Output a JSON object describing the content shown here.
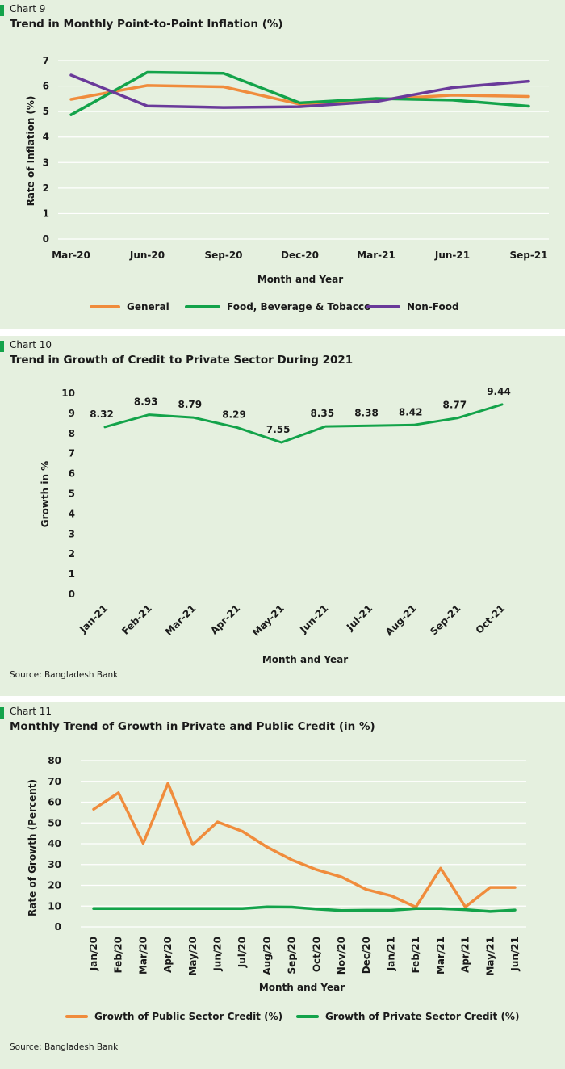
{
  "chart_data": [
    {
      "type": "line",
      "label": "Chart 9",
      "title": "Trend in Monthly Point-to-Point Inflation (%)",
      "xlabel": "Month and Year",
      "ylabel": "Rate of Inflation (%)",
      "ylim": [
        0,
        7
      ],
      "y_ticks": [
        "0",
        "1",
        "2",
        "3",
        "4",
        "5",
        "6",
        "7"
      ],
      "grid": true,
      "legend": "bottom",
      "x_tick_labels": [
        "Mar-20",
        "Jun-20",
        "Sep-20",
        "Dec-20",
        "Mar-21",
        "Jun-21",
        "Sep-21"
      ],
      "series": [
        {
          "name": "General",
          "color": "#f08c3c",
          "values": [
            5.48,
            6.02,
            5.97,
            5.29,
            5.47,
            5.64,
            5.59
          ]
        },
        {
          "name": "Food, Beverage & Tobacco",
          "color": "#13a34a",
          "values": [
            4.87,
            6.54,
            6.5,
            5.34,
            5.51,
            5.45,
            5.21
          ]
        },
        {
          "name": "Non-Food",
          "color": "#6a3a9a",
          "values": [
            6.43,
            5.22,
            5.16,
            5.19,
            5.39,
            5.94,
            6.19
          ]
        }
      ]
    },
    {
      "type": "line",
      "label": "Chart 10",
      "title": "Trend in Growth of Credit to Private Sector During 2021",
      "xlabel": "Month and Year",
      "ylabel": "Growth in %",
      "ylim": [
        0,
        10
      ],
      "y_ticks": [
        "0",
        "1",
        "2",
        "3",
        "4",
        "5",
        "6",
        "7",
        "8",
        "9",
        "10"
      ],
      "grid": false,
      "source": "Source: Bangladesh Bank",
      "categories": [
        "Jan-21",
        "Feb-21",
        "Mar-21",
        "Apr-21",
        "May-21",
        "Jun-21",
        "Jul-21",
        "Aug-21",
        "Sep-21",
        "Oct-21"
      ],
      "series": [
        {
          "color": "#13a34a",
          "values": [
            8.32,
            8.93,
            8.79,
            8.29,
            7.55,
            8.35,
            8.38,
            8.42,
            8.77,
            9.44
          ],
          "data_labels": [
            "8.32",
            "8.93",
            "8.79",
            "8.29",
            "7.55",
            "8.35",
            "8.38",
            "8.42",
            "8.77",
            "9.44"
          ]
        }
      ]
    },
    {
      "type": "line",
      "label": "Chart 11",
      "title": "Monthly Trend of Growth in Private and Public Credit (in %)",
      "xlabel": "Month and Year",
      "ylabel": "Rate of Growth (Percent)",
      "ylim": [
        0,
        80
      ],
      "y_ticks": [
        "0",
        "10",
        "20",
        "30",
        "40",
        "50",
        "60",
        "70",
        "80"
      ],
      "grid": true,
      "legend": "bottom",
      "source": "Source: Bangladesh Bank",
      "categories": [
        "Jan/20",
        "Feb/20",
        "Mar/20",
        "Apr/20",
        "May/20",
        "Jun/20",
        "Jul/20",
        "Aug/20",
        "Sep/20",
        "Oct/20",
        "Nov/20",
        "Dec/20",
        "Jan/21",
        "Feb/21",
        "Mar/21",
        "Apr/21",
        "May/21",
        "Jun/21"
      ],
      "series": [
        {
          "name": "Growth of Public Sector Credit (%)",
          "color": "#f08c3c",
          "values": [
            56.6,
            64.5,
            40.2,
            69.0,
            39.6,
            50.5,
            46.0,
            38.4,
            32.2,
            27.5,
            24.0,
            18.0,
            15.0,
            9.5,
            28.2,
            9.6,
            19.0,
            19.0
          ]
        },
        {
          "name": "Growth of Private Sector Credit (%)",
          "color": "#13a34a",
          "values": [
            8.8,
            8.8,
            8.8,
            8.8,
            8.8,
            8.8,
            8.8,
            9.6,
            9.5,
            8.6,
            7.9,
            8.0,
            8.0,
            8.8,
            8.8,
            8.3,
            7.4,
            8.1
          ]
        }
      ]
    }
  ]
}
